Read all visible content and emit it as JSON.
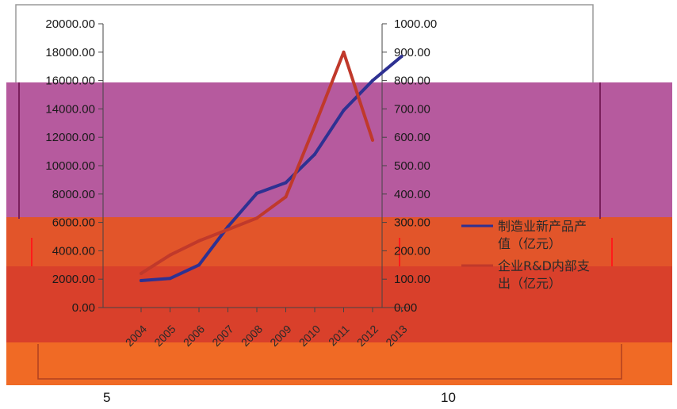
{
  "chart_data": {
    "type": "line",
    "categories": [
      "2004",
      "2005",
      "2006",
      "2007",
      "2008",
      "2009",
      "2010",
      "2011",
      "2012",
      "2013"
    ],
    "y_left": {
      "ticks": [
        "20000.00",
        "18000.00",
        "16000.00",
        "14000.00",
        "12000.00",
        "10000.00",
        "8000.00",
        "6000.00",
        "4000.00",
        "2000.00",
        "0.00"
      ],
      "ylim": [
        0,
        20000
      ]
    },
    "y_right": {
      "ticks": [
        "1000.00",
        "900.00",
        "800.00",
        "700.00",
        "600.00",
        "500.00",
        "400.00",
        "300.00",
        "200.00",
        "100.00",
        "0.00"
      ],
      "ylim": [
        0,
        1000
      ]
    },
    "series": [
      {
        "name": "制造业新产品产值（亿元）",
        "axis": "left",
        "color": "#2e3192",
        "values": [
          1900,
          2050,
          3000,
          5700,
          8050,
          8800,
          10800,
          13900,
          16000,
          17700
        ]
      },
      {
        "name": "企业R&D内部支出（亿元）",
        "axis": "right",
        "color": "#c0392b",
        "values": [
          120,
          185,
          235,
          275,
          315,
          390,
          640,
          900,
          590,
          null
        ]
      }
    ],
    "legend": {
      "placement": "right",
      "entries": [
        "制造业新产品产\n值（亿元）",
        "企业R&D内部支\n出（亿元）"
      ]
    },
    "grid": false
  },
  "page_numbers": [
    "5",
    "10"
  ]
}
